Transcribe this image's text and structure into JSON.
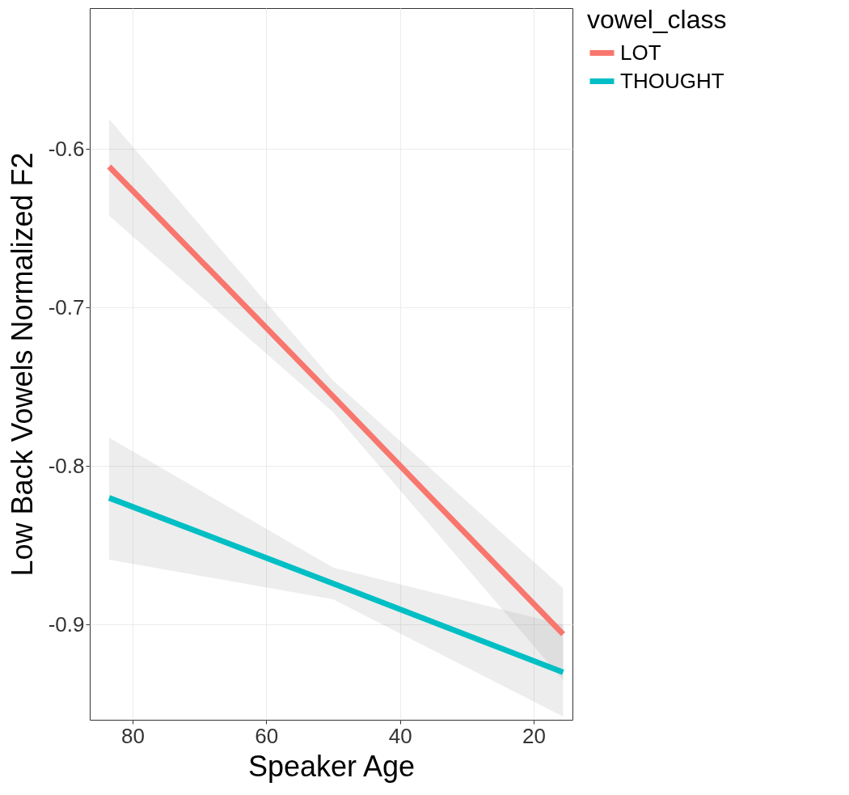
{
  "chart_data": {
    "type": "line",
    "xlabel": "Speaker Age",
    "ylabel": "Low Back Vowels Normalized F2",
    "legend_title": "vowel_class",
    "x": [
      83.5,
      50,
      15.6
    ],
    "series": [
      {
        "name": "LOT",
        "color": "#f8766d",
        "values": [
          -0.611,
          -0.756,
          -0.906
        ],
        "lower": [
          -0.642,
          -0.766,
          -0.935
        ],
        "upper": [
          -0.581,
          -0.746,
          -0.877
        ]
      },
      {
        "name": "THOUGHT",
        "color": "#00bfc4",
        "values": [
          -0.82,
          -0.874,
          -0.93
        ],
        "lower": [
          -0.859,
          -0.884,
          -0.958
        ],
        "upper": [
          -0.782,
          -0.864,
          -0.9
        ]
      }
    ],
    "xlim": [
      86.4,
      14.2
    ],
    "xticks": [
      80,
      60,
      40,
      20
    ],
    "ylim": [
      -0.96,
      -0.511
    ],
    "yticks": [
      -0.9,
      -0.8,
      -0.7,
      -0.6
    ],
    "grid": true,
    "legend": "right",
    "marker": "none",
    "line_style": "solid"
  }
}
